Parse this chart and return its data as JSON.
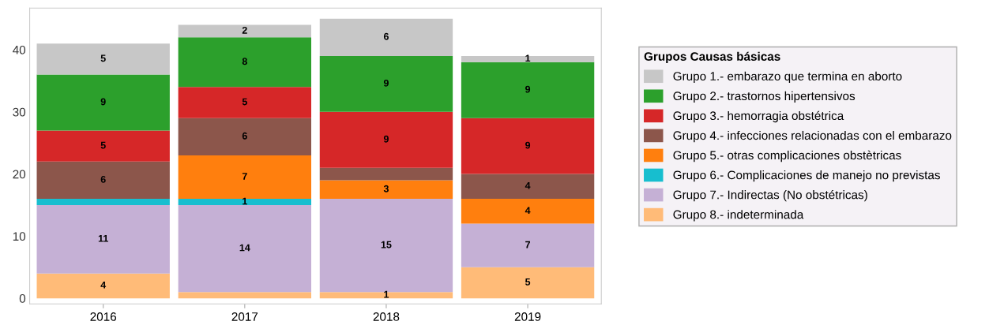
{
  "chart_data": {
    "type": "bar",
    "stacked": true,
    "categories": [
      "2016",
      "2017",
      "2018",
      "2019"
    ],
    "legend_title": "Grupos Causas básicas",
    "legend": "right",
    "grid": false,
    "ylim": [
      -0.9,
      46.7
    ],
    "yticks": [
      0,
      10,
      20,
      30,
      40
    ],
    "series": [
      {
        "name": "Grupo 8.- indeterminada",
        "color": "#ffbb78",
        "values": [
          4,
          1,
          1,
          5
        ],
        "value_labels": [
          "4",
          null,
          "1",
          "5"
        ]
      },
      {
        "name": "Grupo 7.- Indirectas (No obstétricas)",
        "color": "#c5b0d5",
        "values": [
          11,
          14,
          15,
          7
        ],
        "value_labels": [
          "11",
          "14",
          "15",
          "7"
        ]
      },
      {
        "name": "Grupo 6.- Complicaciones de manejo no previstas",
        "color": "#17becf",
        "values": [
          1,
          1,
          null,
          null
        ],
        "value_labels": [
          null,
          "1",
          null,
          null
        ]
      },
      {
        "name": "Grupo 5.- otras complicaciones obstètricas",
        "color": "#ff7f0e",
        "values": [
          null,
          7,
          3,
          4
        ],
        "value_labels": [
          null,
          "7",
          "3",
          "4"
        ]
      },
      {
        "name": "Grupo 4.- infecciones relacionadas con el embarazo",
        "color": "#8c564b",
        "values": [
          6,
          6,
          2,
          4
        ],
        "value_labels": [
          "6",
          "6",
          null,
          "4"
        ]
      },
      {
        "name": "Grupo 3.- hemorragia obstétrica",
        "color": "#d62728",
        "values": [
          5,
          5,
          9,
          9
        ],
        "value_labels": [
          "5",
          "5",
          "9",
          "9"
        ]
      },
      {
        "name": "Grupo 2.- trastornos hipertensivos",
        "color": "#2ca02c",
        "values": [
          9,
          8,
          9,
          9
        ],
        "value_labels": [
          "9",
          "8",
          "9",
          "9"
        ]
      },
      {
        "name": "Grupo 1.- embarazo que termina en aborto",
        "color": "#c7c7c7",
        "values": [
          5,
          2,
          6,
          1
        ],
        "value_labels": [
          "5",
          "2",
          "6",
          "1"
        ]
      }
    ]
  }
}
